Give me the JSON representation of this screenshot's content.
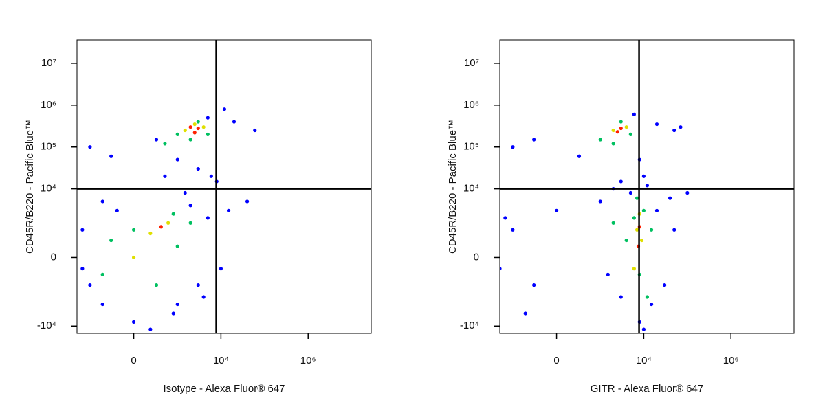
{
  "chart_data": [
    {
      "type": "scatter",
      "xlabel": "Isotype - Alexa Fluor® 647",
      "ylabel": "CD45R/B220 - Pacific Blue™",
      "xscale": "biexponential",
      "yscale": "biexponential",
      "xlim": [
        -2000,
        28000000
      ],
      "ylim": [
        -15000,
        36000000
      ],
      "xticks": [
        0,
        {
          "value": 10000,
          "label": "10⁴"
        },
        {
          "value": 1000000,
          "label": "10⁶"
        }
      ],
      "yticks": [
        {
          "value": -10000,
          "label": "-10⁴"
        },
        0,
        {
          "value": 10000,
          "label": "10⁴"
        },
        {
          "value": 100000,
          "label": "10⁵"
        },
        {
          "value": 1000000,
          "label": "10⁶"
        },
        {
          "value": 10000000,
          "label": "10⁷"
        }
      ],
      "quadrant": {
        "x": 7800,
        "y": 10000
      },
      "series": [
        {
          "color": "#0000ff",
          "x": [
            -1000,
            -300,
            300,
            5000,
            20000,
            60000,
            1000,
            3000,
            500,
            8000,
            -500,
            -1500,
            -1000,
            -500,
            0,
            1000,
            3000,
            5000,
            2000,
            -200,
            800,
            4000,
            10000,
            15000,
            40000,
            -1500,
            1500,
            6000,
            200,
            12000
          ],
          "y": [
            100000,
            60000,
            150000,
            500000,
            400000,
            250000,
            50000,
            30000,
            20000,
            15000,
            5000,
            1000,
            -1000,
            -3000,
            -8000,
            -3000,
            -1000,
            2000,
            4000,
            3000,
            -5000,
            -2000,
            -300,
            3000,
            5000,
            -300,
            8000,
            20000,
            -12000,
            800000
          ]
        },
        {
          "color": "#00c060",
          "x": [
            1000,
            2000,
            5000,
            500,
            3000,
            0,
            300,
            1000,
            -300,
            2000,
            -500,
            800
          ],
          "y": [
            200000,
            150000,
            200000,
            120000,
            400000,
            1000,
            -1000,
            300,
            500,
            1500,
            -500,
            2500
          ]
        },
        {
          "color": "#e0e000",
          "x": [
            1500,
            2500,
            4000,
            200,
            600,
            0
          ],
          "y": [
            250000,
            350000,
            300000,
            800,
            1500,
            0
          ]
        },
        {
          "color": "#ff2000",
          "x": [
            2000,
            3000,
            2500,
            400
          ],
          "y": [
            300000,
            280000,
            220000,
            1200
          ]
        }
      ]
    },
    {
      "type": "scatter",
      "xlabel": "GITR - Alexa Fluor® 647",
      "ylabel": "CD45R/B220 - Pacific Blue™",
      "xscale": "biexponential",
      "yscale": "biexponential",
      "xlim": [
        -2000,
        28000000
      ],
      "ylim": [
        -15000,
        36000000
      ],
      "xticks": [
        0,
        {
          "value": 10000,
          "label": "10⁴"
        },
        {
          "value": 1000000,
          "label": "10⁶"
        }
      ],
      "yticks": [
        {
          "value": -10000,
          "label": "-10⁴"
        },
        0,
        {
          "value": 10000,
          "label": "10⁴"
        },
        {
          "value": 100000,
          "label": "10⁵"
        },
        {
          "value": 1000000,
          "label": "10⁶"
        },
        {
          "value": 10000000,
          "label": "10⁷"
        }
      ],
      "quadrant": {
        "x": 7800,
        "y": 10000
      },
      "series": [
        {
          "color": "#0000ff",
          "x": [
            -1000,
            -300,
            300,
            6000,
            20000,
            50000,
            8000,
            10000,
            3000,
            -1000,
            -300,
            0,
            1000,
            3000,
            -2000,
            20000,
            50000,
            30000,
            15000,
            8000,
            5000,
            10000,
            -500,
            2000,
            100000,
            40000,
            -1500,
            1500,
            70000,
            12000
          ],
          "y": [
            100000,
            150000,
            60000,
            600000,
            350000,
            250000,
            50000,
            20000,
            15000,
            1000,
            -1000,
            3000,
            5000,
            -2000,
            -300,
            3000,
            1000,
            -1000,
            -3000,
            -8000,
            8000,
            -12000,
            -5000,
            10000,
            8000,
            6000,
            2000,
            -500,
            300000,
            12000
          ]
        },
        {
          "color": "#00c060",
          "x": [
            1000,
            2000,
            5000,
            3000,
            6000,
            8000,
            10000,
            4000,
            12000,
            7000,
            2000,
            15000
          ],
          "y": [
            150000,
            120000,
            200000,
            400000,
            2000,
            -500,
            3000,
            500,
            -2000,
            6000,
            1500,
            1000
          ]
        },
        {
          "color": "#e0e000",
          "x": [
            2000,
            4000,
            7000,
            9000,
            8000,
            6000
          ],
          "y": [
            250000,
            300000,
            1000,
            500,
            2500,
            -300
          ]
        },
        {
          "color": "#ff2000",
          "x": [
            3000,
            2500,
            8000,
            7500
          ],
          "y": [
            280000,
            230000,
            1200,
            300
          ]
        }
      ]
    }
  ]
}
